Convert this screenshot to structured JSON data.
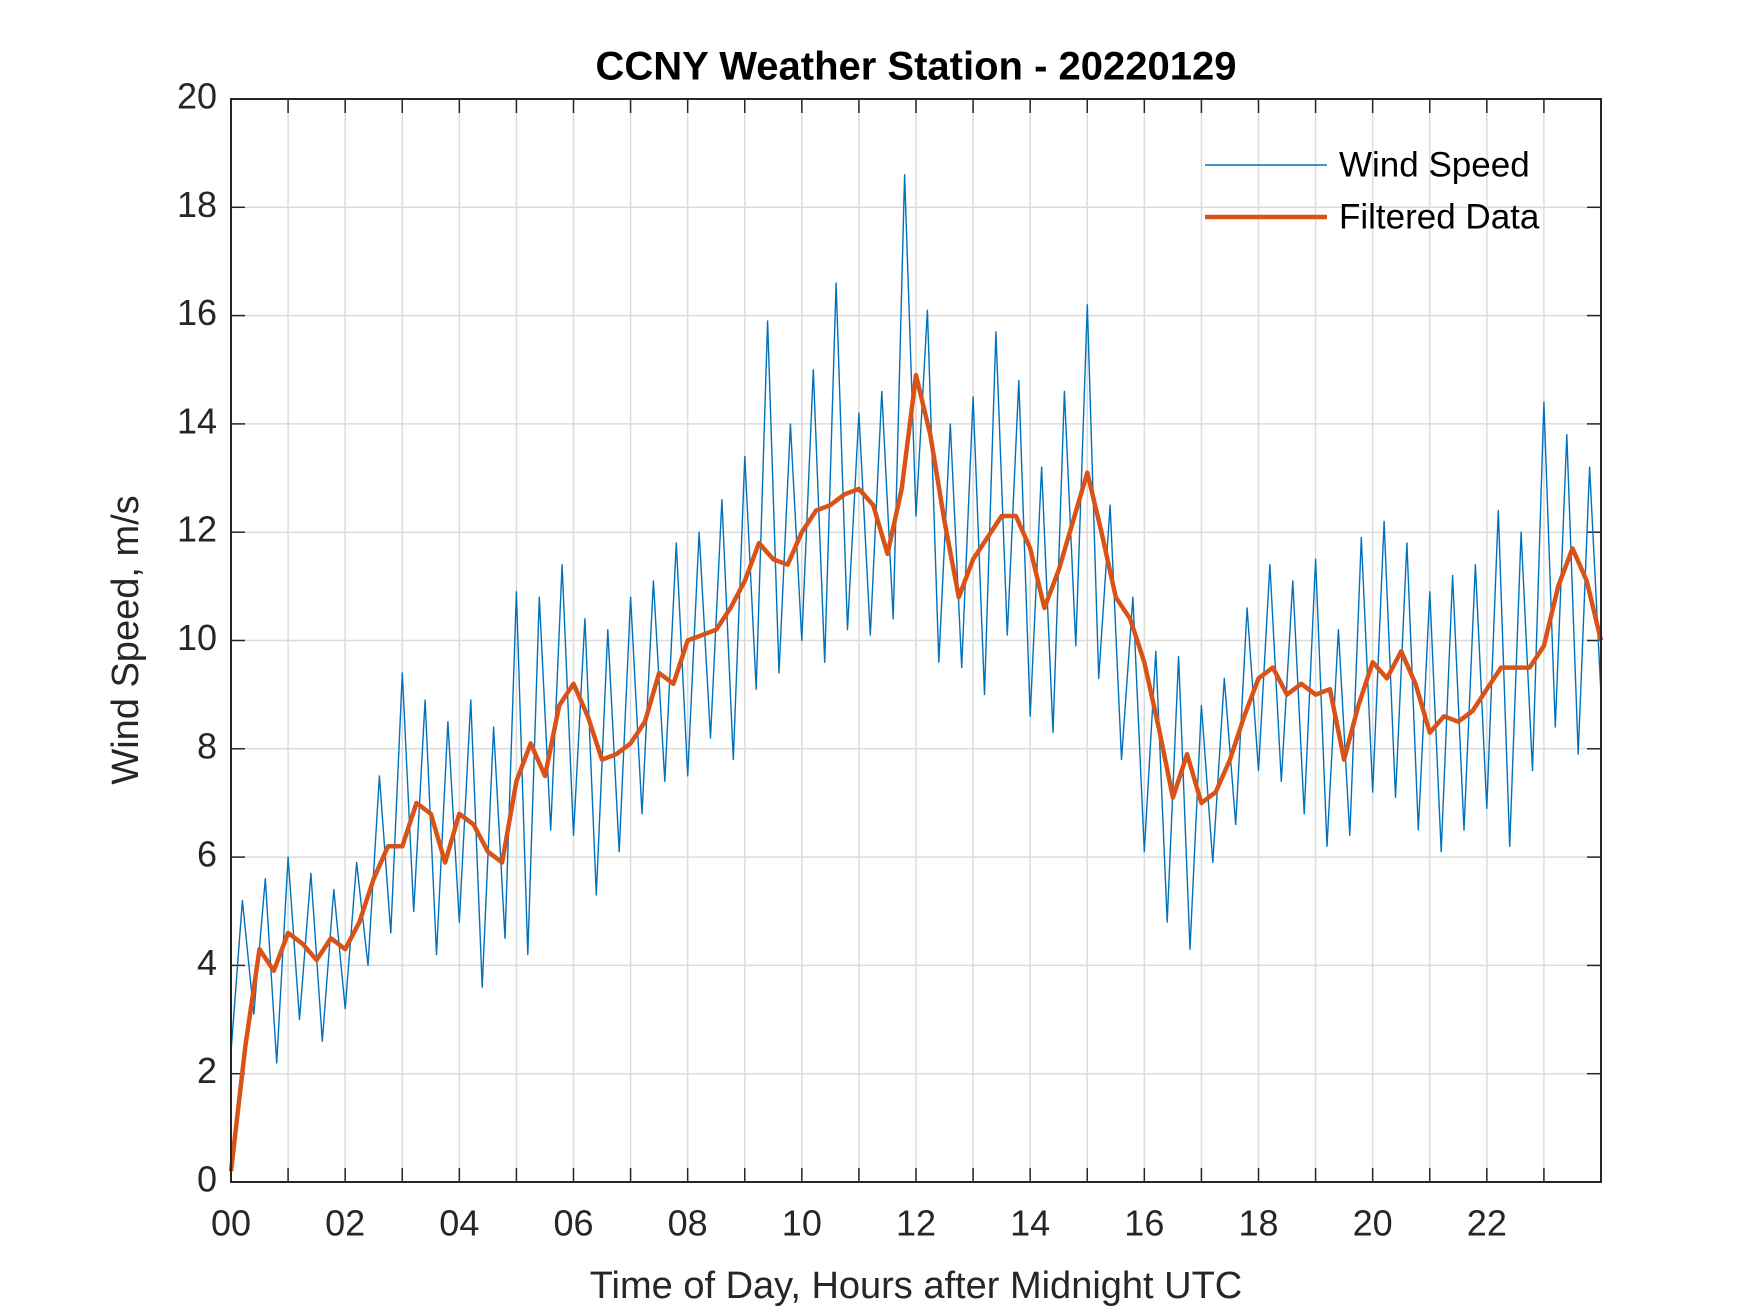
{
  "chart_data": {
    "type": "line",
    "title": "CCNY Weather Station - 20220129",
    "x_label": "Time of Day, Hours after Midnight UTC",
    "y_label": "Wind Speed, m/s",
    "xlim": [
      0,
      24
    ],
    "ylim": [
      0,
      20
    ],
    "xticks": [
      {
        "value": 0,
        "label": "00"
      },
      {
        "value": 2,
        "label": "02"
      },
      {
        "value": 4,
        "label": "04"
      },
      {
        "value": 6,
        "label": "06"
      },
      {
        "value": 8,
        "label": "08"
      },
      {
        "value": 10,
        "label": "10"
      },
      {
        "value": 12,
        "label": "12"
      },
      {
        "value": 14,
        "label": "14"
      },
      {
        "value": 16,
        "label": "16"
      },
      {
        "value": 18,
        "label": "18"
      },
      {
        "value": 20,
        "label": "20"
      },
      {
        "value": 22,
        "label": "22"
      }
    ],
    "xminor_grid": [
      1,
      3,
      5,
      7,
      9,
      11,
      13,
      15,
      17,
      19,
      21,
      23
    ],
    "yticks": [
      0,
      2,
      4,
      6,
      8,
      10,
      12,
      14,
      16,
      18,
      20
    ],
    "grid": true,
    "legend": "upper right",
    "series": [
      {
        "name": "Wind Speed",
        "color": "#0072BD",
        "x": [
          0,
          0.2,
          0.4,
          0.6,
          0.8,
          1,
          1.2,
          1.4,
          1.6,
          1.8,
          2,
          2.2,
          2.4,
          2.6,
          2.8,
          3,
          3.2,
          3.4,
          3.6,
          3.8,
          4,
          4.2,
          4.4,
          4.6,
          4.8,
          5,
          5.2,
          5.4,
          5.6,
          5.8,
          6,
          6.2,
          6.4,
          6.6,
          6.8,
          7,
          7.2,
          7.4,
          7.6,
          7.8,
          8,
          8.2,
          8.4,
          8.6,
          8.8,
          9,
          9.2,
          9.4,
          9.6,
          9.8,
          10,
          10.2,
          10.4,
          10.6,
          10.8,
          11,
          11.2,
          11.4,
          11.6,
          11.8,
          12,
          12.2,
          12.4,
          12.6,
          12.8,
          13,
          13.2,
          13.4,
          13.6,
          13.8,
          14,
          14.2,
          14.4,
          14.6,
          14.8,
          15,
          15.2,
          15.4,
          15.6,
          15.8,
          16,
          16.2,
          16.4,
          16.6,
          16.8,
          17,
          17.2,
          17.4,
          17.6,
          17.8,
          18,
          18.2,
          18.4,
          18.6,
          18.8,
          19,
          19.2,
          19.4,
          19.6,
          19.8,
          20,
          20.2,
          20.4,
          20.6,
          20.8,
          21,
          21.2,
          21.4,
          21.6,
          21.8,
          22,
          22.2,
          22.4,
          22.6,
          22.8,
          23,
          23.2,
          23.4,
          23.6,
          23.8,
          24
        ],
        "values": [
          2.4,
          5.2,
          3.1,
          5.6,
          2.2,
          6.0,
          3.0,
          5.7,
          2.6,
          5.4,
          3.2,
          5.9,
          4.0,
          7.5,
          4.6,
          9.4,
          5.0,
          8.9,
          4.2,
          8.5,
          4.8,
          8.9,
          3.6,
          8.4,
          4.5,
          10.9,
          4.2,
          10.8,
          6.5,
          11.4,
          6.4,
          10.4,
          5.3,
          10.2,
          6.1,
          10.8,
          6.8,
          11.1,
          7.4,
          11.8,
          7.5,
          12.0,
          8.2,
          12.6,
          7.8,
          13.4,
          9.1,
          15.9,
          9.4,
          14.0,
          10.0,
          15.0,
          9.6,
          16.6,
          10.2,
          14.2,
          10.1,
          14.6,
          10.4,
          18.6,
          12.3,
          16.1,
          9.6,
          14.0,
          9.5,
          14.5,
          9.0,
          15.7,
          10.1,
          14.8,
          8.6,
          13.2,
          8.3,
          14.6,
          9.9,
          16.2,
          9.3,
          12.5,
          7.8,
          10.8,
          6.1,
          9.8,
          4.8,
          9.7,
          4.3,
          8.8,
          5.9,
          9.3,
          6.6,
          10.6,
          7.6,
          11.4,
          7.4,
          11.1,
          6.8,
          11.5,
          6.2,
          10.2,
          6.4,
          11.9,
          7.2,
          12.2,
          7.1,
          11.8,
          6.5,
          10.9,
          6.1,
          11.2,
          6.5,
          11.4,
          6.9,
          12.4,
          6.2,
          12.0,
          7.6,
          14.4,
          8.4,
          13.8,
          7.9,
          13.2,
          9.0
        ]
      },
      {
        "name": "Filtered Data",
        "color": "#D95319",
        "x": [
          0,
          0.25,
          0.5,
          0.75,
          1,
          1.25,
          1.5,
          1.75,
          2,
          2.25,
          2.5,
          2.75,
          3,
          3.25,
          3.5,
          3.75,
          4,
          4.25,
          4.5,
          4.75,
          5,
          5.25,
          5.5,
          5.75,
          6,
          6.25,
          6.5,
          6.75,
          7,
          7.25,
          7.5,
          7.75,
          8,
          8.25,
          8.5,
          8.75,
          9,
          9.25,
          9.5,
          9.75,
          10,
          10.25,
          10.5,
          10.75,
          11,
          11.25,
          11.5,
          11.75,
          12,
          12.25,
          12.5,
          12.75,
          13,
          13.25,
          13.5,
          13.75,
          14,
          14.25,
          14.5,
          14.75,
          15,
          15.25,
          15.5,
          15.75,
          16,
          16.25,
          16.5,
          16.75,
          17,
          17.25,
          17.5,
          17.75,
          18,
          18.25,
          18.5,
          18.75,
          19,
          19.25,
          19.5,
          19.75,
          20,
          20.25,
          20.5,
          20.75,
          21,
          21.25,
          21.5,
          21.75,
          22,
          22.25,
          22.5,
          22.75,
          23,
          23.25,
          23.5,
          23.75,
          24
        ],
        "values": [
          0.2,
          2.5,
          4.3,
          3.9,
          4.6,
          4.4,
          4.1,
          4.5,
          4.3,
          4.8,
          5.6,
          6.2,
          6.2,
          7.0,
          6.8,
          5.9,
          6.8,
          6.6,
          6.1,
          5.9,
          7.4,
          8.1,
          7.5,
          8.8,
          9.2,
          8.6,
          7.8,
          7.9,
          8.1,
          8.5,
          9.4,
          9.2,
          10.0,
          10.1,
          10.2,
          10.6,
          11.1,
          11.8,
          11.5,
          11.4,
          12.0,
          12.4,
          12.5,
          12.7,
          12.8,
          12.5,
          11.6,
          12.8,
          14.9,
          13.8,
          12.2,
          10.8,
          11.5,
          11.9,
          12.3,
          12.3,
          11.7,
          10.6,
          11.3,
          12.2,
          13.1,
          12.0,
          10.8,
          10.4,
          9.6,
          8.4,
          7.1,
          7.9,
          7.0,
          7.2,
          7.8,
          8.6,
          9.3,
          9.5,
          9.0,
          9.2,
          9.0,
          9.1,
          7.8,
          8.8,
          9.6,
          9.3,
          9.8,
          9.2,
          8.3,
          8.6,
          8.5,
          8.7,
          9.1,
          9.5,
          9.5,
          9.5,
          9.9,
          11.0,
          11.7,
          11.1,
          10.0
        ]
      }
    ]
  }
}
